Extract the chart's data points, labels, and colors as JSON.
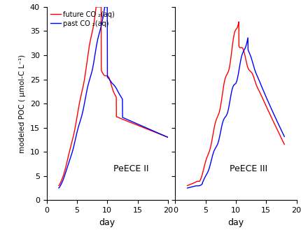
{
  "ylabel": "modeled POC ( μmol-C L⁻¹)",
  "xlabel": "day",
  "ylim": [
    0,
    40
  ],
  "yticks": [
    0,
    5,
    10,
    15,
    20,
    25,
    30,
    35,
    40
  ],
  "panel1_xlim": [
    0,
    20
  ],
  "panel1_xticks": [
    0,
    5,
    10,
    15,
    20
  ],
  "panel2_xlim": [
    0,
    20
  ],
  "panel2_xticks": [
    0,
    5,
    10,
    15,
    20
  ],
  "label1": "PeECE II",
  "label2": "PeECE III",
  "legend_red": "future CO ₂(aq)",
  "legend_blue": "past CO ₂(aq)",
  "red_color": "#ff0000",
  "blue_color": "#0000ff",
  "line_width": 1.0,
  "background_color": "#ffffff"
}
